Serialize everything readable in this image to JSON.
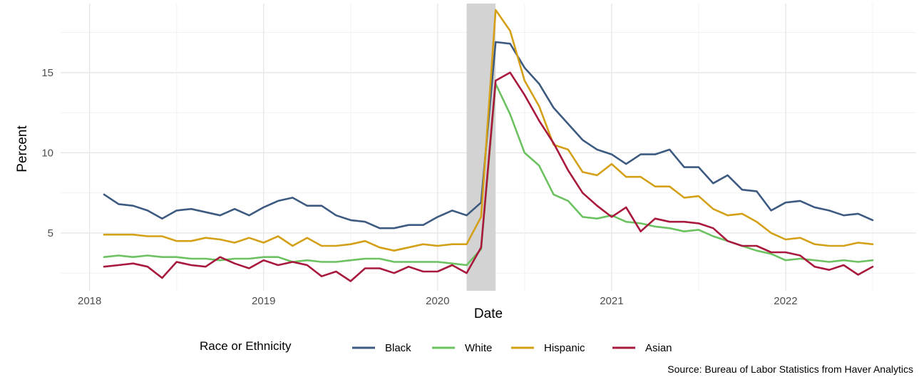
{
  "chart_data": {
    "type": "line",
    "title": "",
    "xlabel": "Date",
    "ylabel": "Percent",
    "caption": "Source: Bureau of Labor Statistics from Haver Analytics",
    "legend_title": "Race or Ethnicity",
    "legend_position": "bottom",
    "grid": true,
    "x_start": "2018-02",
    "x_frequency": "monthly",
    "xlim": [
      "2017-11",
      "2022-10"
    ],
    "x_ticks": [
      "2018",
      "2019",
      "2020",
      "2021",
      "2022"
    ],
    "ylim": [
      1.4,
      19.3
    ],
    "y_ticks": [
      5,
      10,
      15
    ],
    "shaded_period": {
      "start": "2020-03",
      "end": "2020-05",
      "color": "#d3d3d3"
    },
    "series": [
      {
        "name": "Black",
        "color": "#3d5a80",
        "values": [
          7.4,
          6.8,
          6.7,
          6.4,
          5.9,
          6.4,
          6.5,
          6.3,
          6.1,
          6.5,
          6.1,
          6.6,
          7.0,
          7.2,
          6.7,
          6.7,
          6.1,
          5.8,
          5.7,
          5.3,
          5.3,
          5.5,
          5.5,
          6.0,
          6.4,
          6.1,
          6.9,
          16.9,
          16.8,
          15.3,
          14.3,
          12.8,
          11.8,
          10.8,
          10.2,
          9.9,
          9.3,
          9.9,
          9.9,
          10.2,
          9.1,
          9.1,
          8.1,
          8.6,
          7.7,
          7.6,
          6.4,
          6.9,
          7.0,
          6.6,
          6.4,
          6.1,
          6.2,
          5.8
        ]
      },
      {
        "name": "White",
        "color": "#6cc160",
        "values": [
          3.5,
          3.6,
          3.5,
          3.6,
          3.5,
          3.5,
          3.4,
          3.4,
          3.3,
          3.4,
          3.4,
          3.5,
          3.5,
          3.2,
          3.3,
          3.2,
          3.2,
          3.3,
          3.4,
          3.4,
          3.2,
          3.2,
          3.2,
          3.2,
          3.1,
          3.0,
          4.0,
          14.3,
          12.4,
          10.0,
          9.2,
          7.4,
          7.0,
          6.0,
          5.9,
          6.1,
          5.7,
          5.6,
          5.4,
          5.3,
          5.1,
          5.2,
          4.8,
          4.5,
          4.2,
          3.9,
          3.7,
          3.3,
          3.4,
          3.3,
          3.2,
          3.3,
          3.2,
          3.3
        ]
      },
      {
        "name": "Hispanic",
        "color": "#d4a017",
        "values": [
          4.9,
          4.9,
          4.9,
          4.8,
          4.8,
          4.5,
          4.5,
          4.7,
          4.6,
          4.4,
          4.7,
          4.4,
          4.8,
          4.2,
          4.7,
          4.2,
          4.2,
          4.3,
          4.5,
          4.1,
          3.9,
          4.1,
          4.3,
          4.2,
          4.3,
          4.3,
          6.0,
          18.9,
          17.6,
          14.5,
          12.9,
          10.5,
          10.2,
          8.8,
          8.6,
          9.3,
          8.5,
          8.5,
          7.9,
          7.9,
          7.2,
          7.3,
          6.5,
          6.1,
          6.2,
          5.7,
          5.0,
          4.6,
          4.7,
          4.3,
          4.2,
          4.2,
          4.4,
          4.3
        ]
      },
      {
        "name": "Asian",
        "color": "#a8193d",
        "values": [
          2.9,
          3.0,
          3.1,
          2.9,
          2.2,
          3.2,
          3.0,
          2.9,
          3.5,
          3.1,
          2.8,
          3.3,
          3.0,
          3.2,
          3.0,
          2.3,
          2.6,
          2.0,
          2.8,
          2.8,
          2.5,
          2.9,
          2.6,
          2.6,
          3.0,
          2.5,
          4.1,
          14.5,
          15.0,
          13.6,
          12.0,
          10.6,
          8.9,
          7.5,
          6.7,
          6.0,
          6.6,
          5.1,
          5.9,
          5.7,
          5.7,
          5.6,
          5.3,
          4.5,
          4.2,
          4.2,
          3.8,
          3.8,
          3.6,
          2.9,
          2.7,
          3.0,
          2.4,
          2.9
        ]
      }
    ]
  }
}
